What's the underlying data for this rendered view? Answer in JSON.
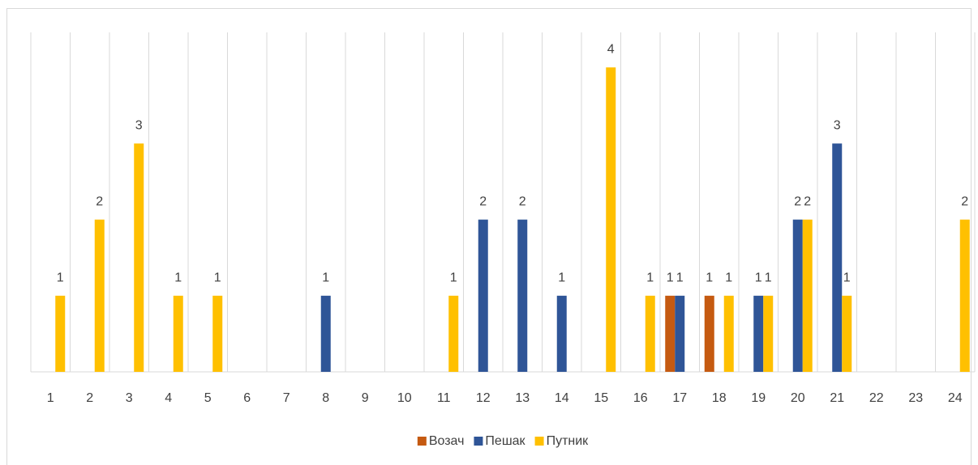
{
  "chart_data": {
    "type": "bar",
    "categories": [
      "1",
      "2",
      "3",
      "4",
      "5",
      "6",
      "7",
      "8",
      "9",
      "10",
      "11",
      "12",
      "13",
      "14",
      "15",
      "16",
      "17",
      "18",
      "19",
      "20",
      "21",
      "22",
      "23",
      "24"
    ],
    "series": [
      {
        "name": "Возач",
        "color": "#c55a11",
        "values": [
          null,
          null,
          null,
          null,
          null,
          null,
          null,
          null,
          null,
          null,
          null,
          null,
          null,
          null,
          null,
          null,
          1,
          1,
          null,
          null,
          null,
          null,
          null,
          null
        ]
      },
      {
        "name": "Пешак",
        "color": "#2f5597",
        "values": [
          null,
          null,
          null,
          null,
          null,
          null,
          null,
          1,
          null,
          null,
          null,
          2,
          2,
          1,
          null,
          null,
          1,
          null,
          1,
          2,
          3,
          null,
          null,
          null
        ]
      },
      {
        "name": "Путник",
        "color": "#ffc000",
        "values": [
          1,
          2,
          3,
          1,
          1,
          null,
          null,
          null,
          null,
          null,
          1,
          null,
          null,
          null,
          4,
          1,
          null,
          1,
          1,
          2,
          1,
          null,
          null,
          2
        ]
      }
    ],
    "grid": true,
    "legend": "bottom"
  }
}
